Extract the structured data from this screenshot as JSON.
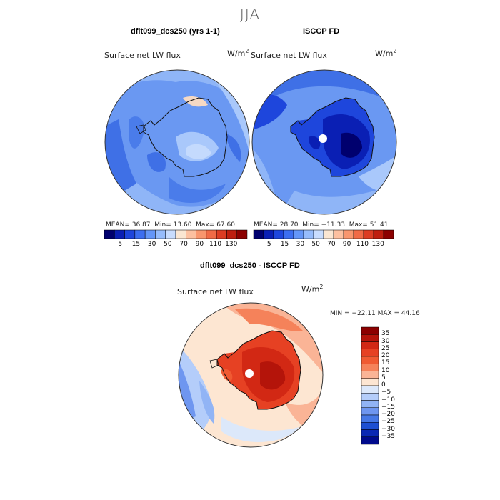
{
  "figure_title": "JJA",
  "panels": [
    {
      "title": "dflt099_dcs250 (yrs 1-1)",
      "variable": "Surface net LW flux",
      "units": "W/m",
      "units_exp": "2",
      "stats": {
        "mean_label": "MEAN=",
        "mean": "36.87",
        "min_label": "Min=",
        "min": "13.60",
        "max_label": "Max=",
        "max": "67.60"
      }
    },
    {
      "title": "ISCCP FD",
      "variable": "Surface net LW flux",
      "units": "W/m",
      "units_exp": "2",
      "stats": {
        "mean_label": "MEAN=",
        "mean": "28.70",
        "min_label": "Min=",
        "min": "−11.33",
        "max_label": "Max=",
        "max": "51.41"
      }
    },
    {
      "title": "dflt099_dcs250 - ISCCP FD",
      "variable": "Surface net LW flux",
      "units": "W/m",
      "units_exp": "2",
      "stats_line": "MIN = −22.11 MAX =  44.16"
    }
  ],
  "colorbar_top": {
    "labels": [
      "5",
      "15",
      "30",
      "50",
      "70",
      "90",
      "110",
      "130"
    ],
    "colors": [
      "#00006e",
      "#0a1fb4",
      "#1e46dc",
      "#3c6ef0",
      "#6496f8",
      "#96bcfc",
      "#c8dcfe",
      "#fae6d2",
      "#fcc0a0",
      "#f8966e",
      "#f06a46",
      "#dc3c23",
      "#be1e0f",
      "#8c0000"
    ]
  },
  "colorbar_diff": {
    "labels": [
      "35",
      "30",
      "25",
      "20",
      "15",
      "10",
      "5",
      "0",
      "−5",
      "−10",
      "−15",
      "−20",
      "−25",
      "−30",
      "−35"
    ],
    "colors": [
      "#8c0000",
      "#b4140a",
      "#d22814",
      "#e64123",
      "#f05a32",
      "#f5825a",
      "#fab496",
      "#fde6d2",
      "#dce8fa",
      "#b4cdfa",
      "#91b4f5",
      "#6e96f0",
      "#4678e6",
      "#1e50d2",
      "#0a28b4",
      "#000a8c"
    ]
  }
}
